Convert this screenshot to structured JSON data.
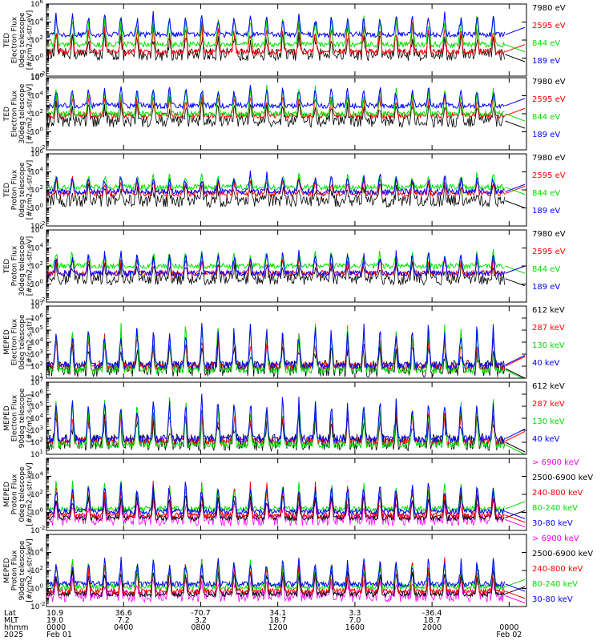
{
  "colors": {
    "black": "#000000",
    "red": "#ff0000",
    "green": "#00e000",
    "blue": "#0000ff",
    "magenta": "#ff00ff"
  },
  "chart_data": [
    {
      "type": "line",
      "ylabel": [
        "TED",
        "Electron Flux",
        "0deg telescope",
        "[#/cm2-s-str-eV]"
      ],
      "yscale": "log",
      "ylim_exp": [
        -2,
        6
      ],
      "ytick_exps": [
        -2,
        0,
        2,
        4,
        6
      ],
      "legend": [
        {
          "text": "7980 eV",
          "color": "#000000"
        },
        {
          "text": "2595 eV",
          "color": "#ff0000"
        },
        {
          "text": "844 eV",
          "color": "#00e000"
        },
        {
          "text": "189 eV",
          "color": "#0000ff"
        }
      ],
      "series_levels_exp": [
        0.4,
        0.7,
        1.5,
        2.6
      ],
      "burst_peak_exp": 5.2
    },
    {
      "type": "line",
      "ylabel": [
        "TED",
        "Electron Flux",
        "30deg telescope",
        "[#/cm2-s-str-eV]"
      ],
      "yscale": "log",
      "ylim_exp": [
        -2,
        6
      ],
      "ytick_exps": [
        -2,
        0,
        2,
        4,
        6
      ],
      "legend": [
        {
          "text": "7980 eV",
          "color": "#000000"
        },
        {
          "text": "2595 eV",
          "color": "#ff0000"
        },
        {
          "text": "844 eV",
          "color": "#00e000"
        },
        {
          "text": "189 eV",
          "color": "#0000ff"
        }
      ],
      "series_levels_exp": [
        1.2,
        1.8,
        2.0,
        2.9
      ],
      "burst_peak_exp": 5.3
    },
    {
      "type": "line",
      "ylabel": [
        "TED",
        "Proton Flux",
        "0deg telescope",
        "[#/cm2-s-str-eV]"
      ],
      "yscale": "log",
      "ylim_exp": [
        -2,
        6
      ],
      "ytick_exps": [
        -2,
        0,
        2,
        4,
        6
      ],
      "legend": [
        {
          "text": "7980 eV",
          "color": "#000000"
        },
        {
          "text": "2595 eV",
          "color": "#ff0000"
        },
        {
          "text": "844 eV",
          "color": "#00e000"
        },
        {
          "text": "189 eV",
          "color": "#0000ff"
        }
      ],
      "series_levels_exp": [
        0.8,
        1.6,
        2.3,
        1.8
      ],
      "burst_peak_exp": 4.0
    },
    {
      "type": "line",
      "ylabel": [
        "TED",
        "Proton Flux",
        "30deg telescope",
        "[#/cm2-s-str-eV]"
      ],
      "yscale": "log",
      "ylim_exp": [
        -2,
        6
      ],
      "ytick_exps": [
        -2,
        0,
        2,
        4,
        6
      ],
      "legend": [
        {
          "text": "7980 eV",
          "color": "#000000"
        },
        {
          "text": "2595 eV",
          "color": "#ff0000"
        },
        {
          "text": "844 eV",
          "color": "#00e000"
        },
        {
          "text": "189 eV",
          "color": "#0000ff"
        }
      ],
      "series_levels_exp": [
        0.6,
        1.2,
        2.0,
        1.2
      ],
      "burst_peak_exp": 3.8
    },
    {
      "type": "line",
      "ylabel": [
        "MEPED",
        "Electron Flux",
        "0deg telescope",
        "[#/cm2-s-str]"
      ],
      "yscale": "log",
      "ylim_exp": [
        1,
        7
      ],
      "ytick_exps": [
        1,
        2,
        3,
        4,
        5,
        6,
        7
      ],
      "legend": [
        {
          "text": "612 keV",
          "color": "#000000"
        },
        {
          "text": "287 keV",
          "color": "#ff0000"
        },
        {
          "text": "130 keV",
          "color": "#00e000"
        },
        {
          "text": "40 keV",
          "color": "#0000ff"
        }
      ],
      "series_levels_exp": [
        1.8,
        2.0,
        1.7,
        2.1
      ],
      "burst_peak_exp": 6.0
    },
    {
      "type": "line",
      "ylabel": [
        "MEPED",
        "Electron Flux",
        "90deg telescope",
        "[#/cm2-s-str]"
      ],
      "yscale": "log",
      "ylim_exp": [
        1,
        7
      ],
      "ytick_exps": [
        1,
        2,
        3,
        4,
        5,
        6,
        7
      ],
      "legend": [
        {
          "text": "612 keV",
          "color": "#000000"
        },
        {
          "text": "287 keV",
          "color": "#ff0000"
        },
        {
          "text": "130 keV",
          "color": "#00e000"
        },
        {
          "text": "40 keV",
          "color": "#0000ff"
        }
      ],
      "series_levels_exp": [
        2.0,
        2.1,
        1.8,
        2.3
      ],
      "burst_peak_exp": 6.2
    },
    {
      "type": "line",
      "ylabel": [
        "MEPED",
        "Proton Flux",
        "0deg telescope",
        "[#/cm2-s-str-keV]"
      ],
      "yscale": "log",
      "ylim_exp": [
        -2,
        6
      ],
      "ytick_exps": [
        -2,
        0,
        2,
        4
      ],
      "legend": [
        {
          "text": "> 6900 keV",
          "color": "#ff00ff"
        },
        {
          "text": "2500-6900 keV",
          "color": "#000000"
        },
        {
          "text": "240-800 keV",
          "color": "#ff0000"
        },
        {
          "text": "80-240 keV",
          "color": "#00e000"
        },
        {
          "text": "30-80 keV",
          "color": "#0000ff"
        }
      ],
      "series_levels_exp": [
        -0.8,
        -0.6,
        -0.3,
        0.4,
        0.1
      ],
      "burst_peak_exp": 3.8
    },
    {
      "type": "line",
      "ylabel": [
        "MEPED",
        "Proton Flux",
        "90deg telescope",
        "[#/cm2-s-str-keV]"
      ],
      "yscale": "log",
      "ylim_exp": [
        -2,
        6
      ],
      "ytick_exps": [
        -2,
        0,
        2,
        4
      ],
      "legend": [
        {
          "text": "> 6900 keV",
          "color": "#ff00ff"
        },
        {
          "text": "2500-6900 keV",
          "color": "#000000"
        },
        {
          "text": "240-800 keV",
          "color": "#ff0000"
        },
        {
          "text": "80-240 keV",
          "color": "#00e000"
        },
        {
          "text": "30-80 keV",
          "color": "#0000ff"
        }
      ],
      "series_levels_exp": [
        -0.8,
        -0.6,
        -0.3,
        0.2,
        0.5
      ],
      "burst_peak_exp": 3.6
    }
  ],
  "x_axis": {
    "row_labels": [
      "Lat",
      "MLT",
      "hhmm",
      "2025"
    ],
    "ticks": [
      {
        "lat": "10.9",
        "mlt": "19.0",
        "hhmm": "0000",
        "date": "Feb 01"
      },
      {
        "lat": "36.6",
        "mlt": "7.2",
        "hhmm": "0400",
        "date": ""
      },
      {
        "lat": "-70.7",
        "mlt": "3.2",
        "hhmm": "0800",
        "date": ""
      },
      {
        "lat": "34.1",
        "mlt": "18.7",
        "hhmm": "1200",
        "date": ""
      },
      {
        "lat": "3.3",
        "mlt": "7.0",
        "hhmm": "1600",
        "date": ""
      },
      {
        "lat": "-36.4",
        "mlt": "18.7",
        "hhmm": "2000",
        "date": ""
      },
      {
        "lat": "",
        "mlt": "",
        "hhmm": "0000",
        "date": "Feb 02"
      }
    ],
    "x_hours": [
      0,
      4,
      8,
      12,
      16,
      20,
      24
    ]
  }
}
